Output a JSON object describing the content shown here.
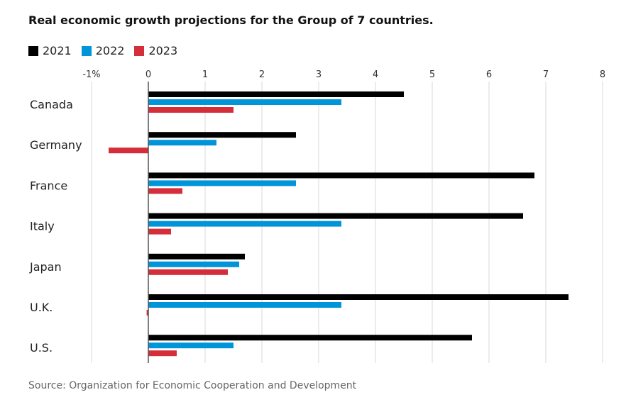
{
  "chart_data": {
    "type": "bar",
    "orientation": "horizontal",
    "title": "Real economic growth projections for the Group of 7 countries.",
    "source": "Source: Organization for Economic Cooperation and Development",
    "categories": [
      "Canada",
      "Germany",
      "France",
      "Italy",
      "Japan",
      "U.K.",
      "U.S."
    ],
    "series": [
      {
        "name": "2021",
        "color": "#000000",
        "values": [
          4.5,
          2.6,
          6.8,
          6.6,
          1.7,
          7.4,
          5.7
        ]
      },
      {
        "name": "2022",
        "color": "#0095d9",
        "values": [
          3.4,
          1.2,
          2.6,
          3.4,
          1.6,
          3.4,
          1.5
        ]
      },
      {
        "name": "2023",
        "color": "#d42e3a",
        "values": [
          1.5,
          -0.7,
          0.6,
          0.4,
          1.4,
          -0.03,
          0.5
        ]
      }
    ],
    "xlim": [
      -1,
      8
    ],
    "xticks": [
      -1,
      0,
      1,
      2,
      3,
      4,
      5,
      6,
      7,
      8
    ],
    "xtick_labels": [
      "-1%",
      "0",
      "1",
      "2",
      "3",
      "4",
      "5",
      "6",
      "7",
      "8"
    ],
    "grid": true,
    "legend_position": "top-left"
  }
}
